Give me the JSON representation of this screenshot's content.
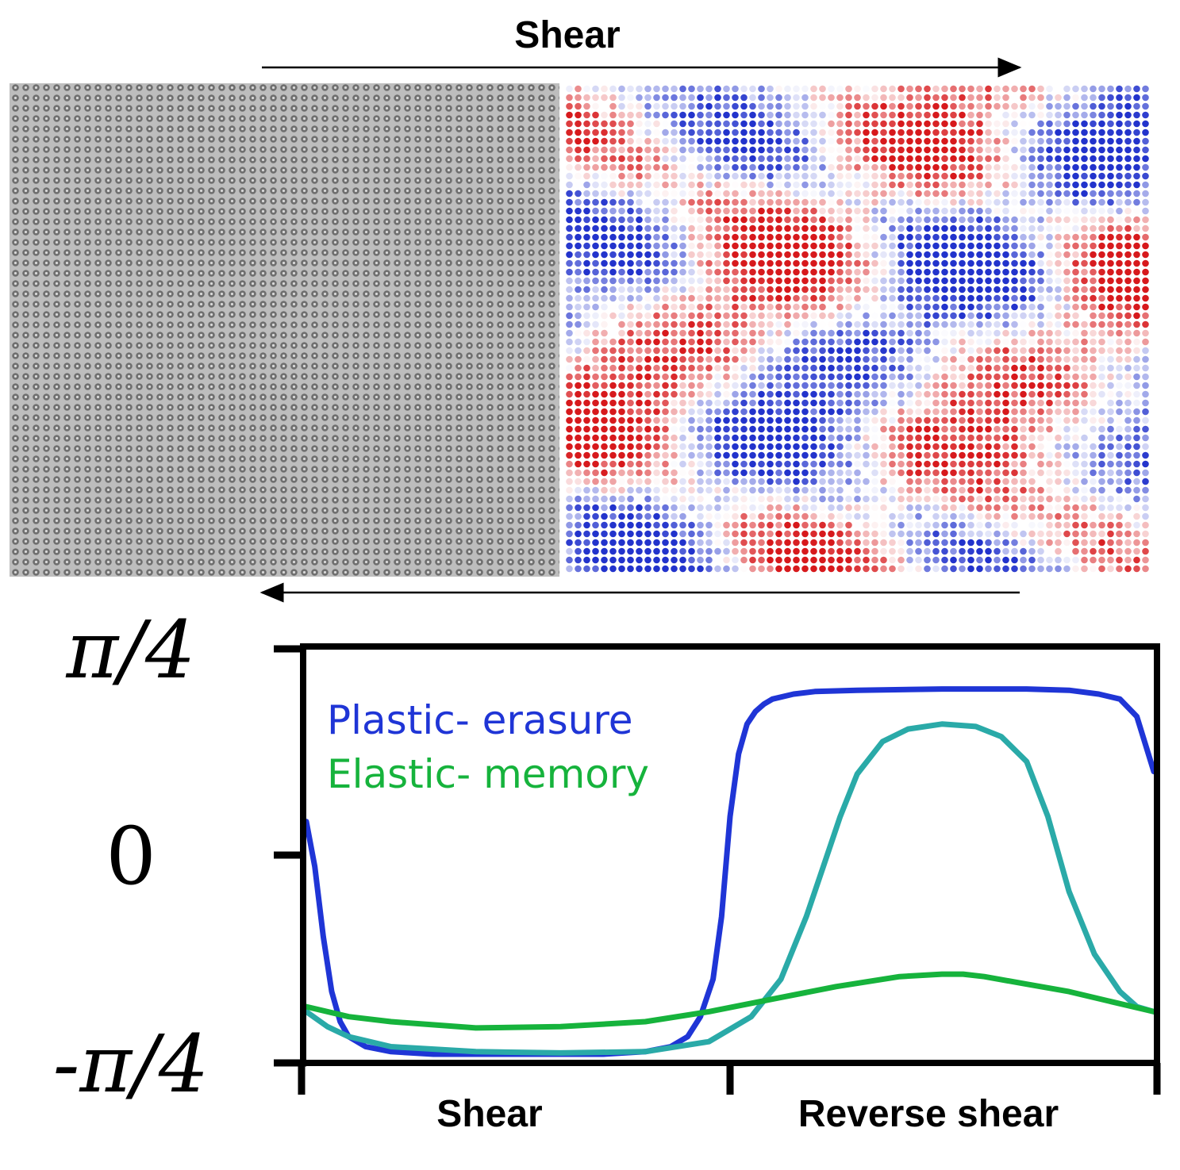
{
  "top_panel": {
    "title": "Shear",
    "left_image": "grayscale-particle-micrograph",
    "right_image": "colored-particle-map",
    "map_colors": {
      "positive": "#d7191c",
      "negative": "#2233cc",
      "neutral": "#ffffff"
    }
  },
  "chart_data": {
    "type": "line",
    "title": "",
    "xlabel": "",
    "ylabel": "",
    "x_phases": [
      "Shear",
      "Reverse shear"
    ],
    "xlim": [
      0,
      2
    ],
    "xticks": [
      0,
      1,
      2
    ],
    "ylim": [
      -0.785,
      0.785
    ],
    "yticks": [
      {
        "value": 0.785,
        "label": "π/4"
      },
      {
        "value": 0,
        "label": "0"
      },
      {
        "value": -0.785,
        "label": "-π/4"
      }
    ],
    "grid": false,
    "legend_position": "top-left",
    "legend": [
      {
        "label": "Plastic- erasure",
        "color": "#1f35d6"
      },
      {
        "label": "Elastic- memory",
        "color": "#16b33c"
      }
    ],
    "series": [
      {
        "color": "#1f35d6",
        "x": [
          0,
          0.02,
          0.04,
          0.06,
          0.08,
          0.1,
          0.14,
          0.2,
          0.3,
          0.5,
          0.7,
          0.8,
          0.86,
          0.9,
          0.93,
          0.96,
          0.98,
          1.0,
          1.02,
          1.04,
          1.06,
          1.08,
          1.1,
          1.15,
          1.2,
          1.3,
          1.5,
          1.7,
          1.8,
          1.87,
          1.92,
          1.96,
          2.0
        ],
        "y": [
          0.18,
          0.0,
          -0.28,
          -0.5,
          -0.62,
          -0.68,
          -0.72,
          -0.74,
          -0.75,
          -0.75,
          -0.75,
          -0.74,
          -0.72,
          -0.68,
          -0.6,
          -0.45,
          -0.2,
          0.2,
          0.45,
          0.57,
          0.62,
          0.65,
          0.67,
          0.69,
          0.7,
          0.705,
          0.71,
          0.71,
          0.705,
          0.69,
          0.67,
          0.6,
          0.38
        ]
      },
      {
        "color": "#2aaaa8",
        "x": [
          0,
          0.05,
          0.1,
          0.2,
          0.4,
          0.6,
          0.8,
          0.95,
          1.05,
          1.12,
          1.18,
          1.22,
          1.26,
          1.3,
          1.36,
          1.42,
          1.5,
          1.58,
          1.64,
          1.7,
          1.75,
          1.8,
          1.86,
          1.92,
          1.96,
          2.0
        ],
        "y": [
          -0.58,
          -0.64,
          -0.68,
          -0.72,
          -0.74,
          -0.745,
          -0.74,
          -0.7,
          -0.6,
          -0.45,
          -0.2,
          0.0,
          0.2,
          0.37,
          0.5,
          0.55,
          0.57,
          0.56,
          0.52,
          0.42,
          0.2,
          -0.1,
          -0.35,
          -0.5,
          -0.56,
          -0.58
        ]
      },
      {
        "color": "#16b33c",
        "x": [
          0,
          0.1,
          0.2,
          0.4,
          0.6,
          0.8,
          0.95,
          1.1,
          1.25,
          1.4,
          1.5,
          1.55,
          1.6,
          1.7,
          1.8,
          1.9,
          2.0
        ],
        "y": [
          -0.56,
          -0.6,
          -0.62,
          -0.645,
          -0.64,
          -0.62,
          -0.58,
          -0.53,
          -0.48,
          -0.44,
          -0.43,
          -0.43,
          -0.44,
          -0.47,
          -0.5,
          -0.54,
          -0.58
        ]
      }
    ]
  }
}
